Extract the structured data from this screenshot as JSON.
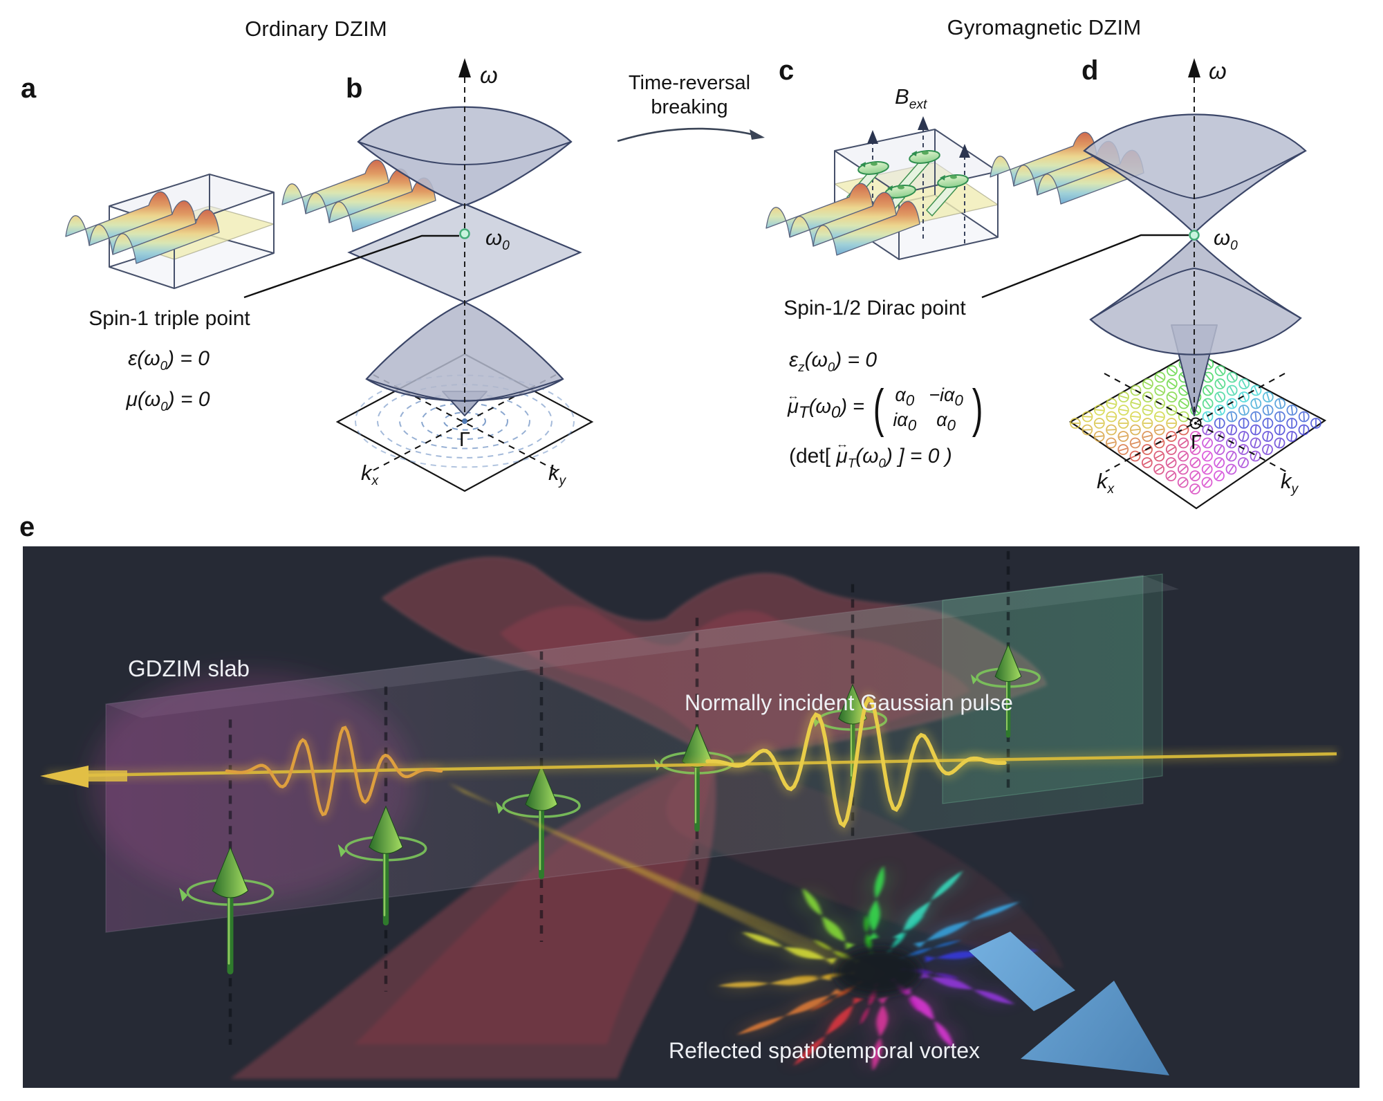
{
  "figure": {
    "left_column_title": "Ordinary DZIM",
    "right_column_title": "Gyromagnetic DZIM",
    "transition_line1": "Time-reversal",
    "transition_line2": "breaking",
    "panel_labels": {
      "a": "a",
      "b": "b",
      "c": "c",
      "d": "d",
      "e": "e"
    }
  },
  "panel_b": {
    "omega": "ω",
    "omega0": [
      {
        "t": "ω"
      },
      {
        "t": "0",
        "sub": true
      }
    ],
    "gamma": "Γ",
    "kx": [
      {
        "t": "k"
      },
      {
        "t": "x",
        "sub": true
      }
    ],
    "ky": [
      {
        "t": "k"
      },
      {
        "t": "y",
        "sub": true
      }
    ],
    "point_label": "Spin-1 triple point",
    "eq_epsilon": [
      {
        "t": "ε(ω"
      },
      {
        "t": "0",
        "sub": true
      },
      {
        "t": ") = 0"
      }
    ],
    "eq_mu": [
      {
        "t": "μ(ω"
      },
      {
        "t": "0",
        "sub": true
      },
      {
        "t": ") = 0"
      }
    ]
  },
  "panel_c": {
    "b_ext": [
      {
        "t": "B"
      },
      {
        "t": "ext",
        "sub": true
      }
    ],
    "point_label": "Spin-1/2 Dirac point",
    "eq_epsilon_z": [
      {
        "t": "ε"
      },
      {
        "t": "z",
        "sub": true
      },
      {
        "t": "(ω"
      },
      {
        "t": "0",
        "sub": true
      },
      {
        "t": ") = 0"
      }
    ],
    "eq_mu_lhs": [
      {
        "t": "μ",
        "tensor": true
      },
      {
        "t": "T",
        "sub": true
      },
      {
        "t": "(ω"
      },
      {
        "t": "0",
        "sub": true
      },
      {
        "t": ") ="
      }
    ],
    "matrix": {
      "m11": [
        {
          "t": "α"
        },
        {
          "t": "0",
          "sub": true
        }
      ],
      "m12": [
        {
          "t": "−iα"
        },
        {
          "t": "0",
          "sub": true
        }
      ],
      "m21": [
        {
          "t": "iα"
        },
        {
          "t": "0",
          "sub": true
        }
      ],
      "m22": [
        {
          "t": "α"
        },
        {
          "t": "0",
          "sub": true
        }
      ]
    },
    "eq_det": [
      {
        "t": "(det[ ",
        "up": true
      },
      {
        "t": "μ",
        "tensor": true
      },
      {
        "t": "T",
        "sub": true
      },
      {
        "t": "(ω"
      },
      {
        "t": "0",
        "sub": true
      },
      {
        "t": ") ] = 0 )"
      }
    ]
  },
  "panel_d": {
    "omega": "ω",
    "omega0": [
      {
        "t": "ω"
      },
      {
        "t": "0",
        "sub": true
      }
    ],
    "gamma": "Γ",
    "kx": [
      {
        "t": "k"
      },
      {
        "t": "x",
        "sub": true
      }
    ],
    "ky": [
      {
        "t": "k"
      },
      {
        "t": "y",
        "sub": true
      }
    ]
  },
  "panel_e": {
    "slab_label": "GDZIM slab",
    "incident_label": "Normally incident Gaussian pulse",
    "reflected_label": "Reflected spatiotemporal vortex"
  },
  "palette": {
    "surface": "#b9bed1",
    "surface_stroke": "#3b4668",
    "ring_blue": "#6f92c4",
    "omega0_fill": "#c9f4de",
    "omega0_stroke": "#44ad79",
    "spin_green": "#7cc65b",
    "beam_yellow": "#d8ba3a",
    "panel_e_bg": "#262a35",
    "arrow_blue": "#5e9bcf",
    "wave_colors": [
      "#cf6a4e",
      "#e09a63",
      "#ecd68f",
      "#d9e6b4",
      "#9fd0d8",
      "#74aed4"
    ]
  }
}
